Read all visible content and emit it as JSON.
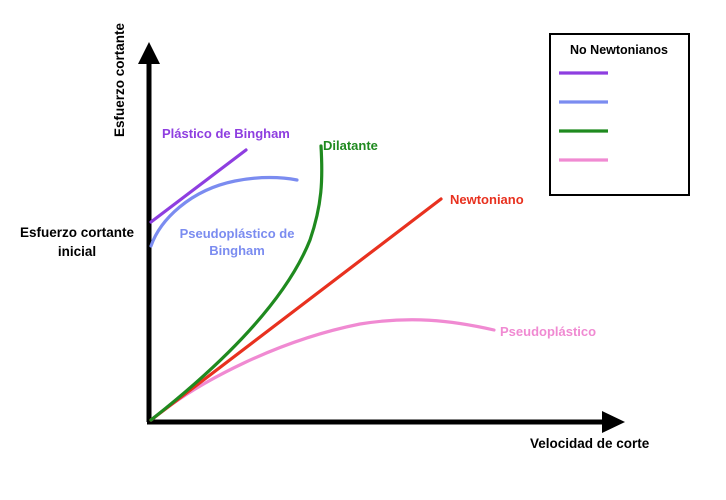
{
  "axes": {
    "y_label": "Esfuerzo cortante",
    "x_label": "Velocidad de corte"
  },
  "initial_stress_label": {
    "line1": "Esfuerzo cortante",
    "line2": "inicial"
  },
  "curves": {
    "bingham": {
      "label": "Plástico de Bingham",
      "color": "#8e3ee0"
    },
    "pseudo_bingham": {
      "label_line1": "Pseudoplástico de",
      "label_line2": "Bingham",
      "color": "#7b8cf0"
    },
    "dilatante": {
      "label": "Dilatante",
      "color": "#1f8a1f"
    },
    "newtoniano": {
      "label": "Newtoniano",
      "color": "#e8311f"
    },
    "pseudoplastico": {
      "label": "Pseudoplástico",
      "color": "#f08ad2"
    }
  },
  "legend": {
    "title": "No Newtonianos",
    "swatches": [
      {
        "color": "#8e3ee0"
      },
      {
        "color": "#7b8cf0"
      },
      {
        "color": "#1f8a1f"
      },
      {
        "color": "#f08ad2"
      }
    ]
  }
}
